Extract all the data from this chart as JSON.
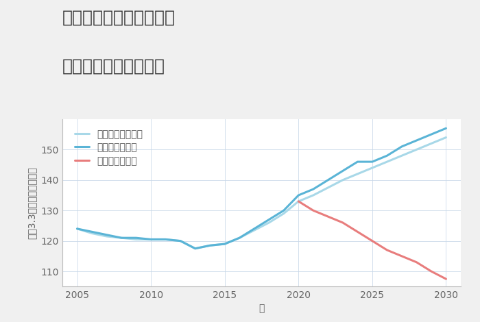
{
  "title_line1": "兵庫県西宮市今津港町の",
  "title_line2": "中古戸建ての価格推移",
  "xlabel": "年",
  "ylabel": "坪（3.3㎡）単価（万円）",
  "background_color": "#f0f0f0",
  "plot_bg_color": "#ffffff",
  "good_scenario": {
    "label": "グッドシナリオ",
    "color": "#5ab4d6",
    "years": [
      2005,
      2006,
      2007,
      2008,
      2009,
      2010,
      2011,
      2012,
      2013,
      2014,
      2015,
      2016,
      2017,
      2018,
      2019,
      2020,
      2021,
      2022,
      2023,
      2024,
      2025,
      2026,
      2027,
      2028,
      2029,
      2030
    ],
    "values": [
      124,
      123,
      122,
      121,
      121,
      120.5,
      120.5,
      120,
      117.5,
      118.5,
      119,
      121,
      124,
      127,
      130,
      135,
      137,
      140,
      143,
      146,
      146,
      148,
      151,
      153,
      155,
      157
    ]
  },
  "bad_scenario": {
    "label": "バッドシナリオ",
    "color": "#e87d7d",
    "years": [
      2020,
      2021,
      2022,
      2023,
      2024,
      2025,
      2026,
      2027,
      2028,
      2029,
      2030
    ],
    "values": [
      133,
      130,
      128,
      126,
      123,
      120,
      117,
      115,
      113,
      110,
      107.5
    ]
  },
  "normal_scenario": {
    "label": "ノーマルシナリオ",
    "color": "#a8d8e8",
    "years": [
      2005,
      2006,
      2007,
      2008,
      2009,
      2010,
      2011,
      2012,
      2013,
      2014,
      2015,
      2016,
      2017,
      2018,
      2019,
      2020,
      2021,
      2022,
      2023,
      2024,
      2025,
      2026,
      2027,
      2028,
      2029,
      2030
    ],
    "values": [
      124,
      122.5,
      121.5,
      121,
      120.5,
      120.5,
      120.5,
      120,
      117.5,
      118.5,
      119,
      121,
      123.5,
      126,
      129,
      133,
      135,
      137.5,
      140,
      142,
      144,
      146,
      148,
      150,
      152,
      154
    ]
  },
  "ylim": [
    105,
    160
  ],
  "yticks": [
    110,
    120,
    130,
    140,
    150
  ],
  "xticks": [
    2005,
    2010,
    2015,
    2020,
    2025,
    2030
  ],
  "grid_color": "#c8d8e8",
  "linewidth": 2.2,
  "title_fontsize": 18,
  "label_fontsize": 10,
  "tick_fontsize": 10,
  "legend_fontsize": 10
}
